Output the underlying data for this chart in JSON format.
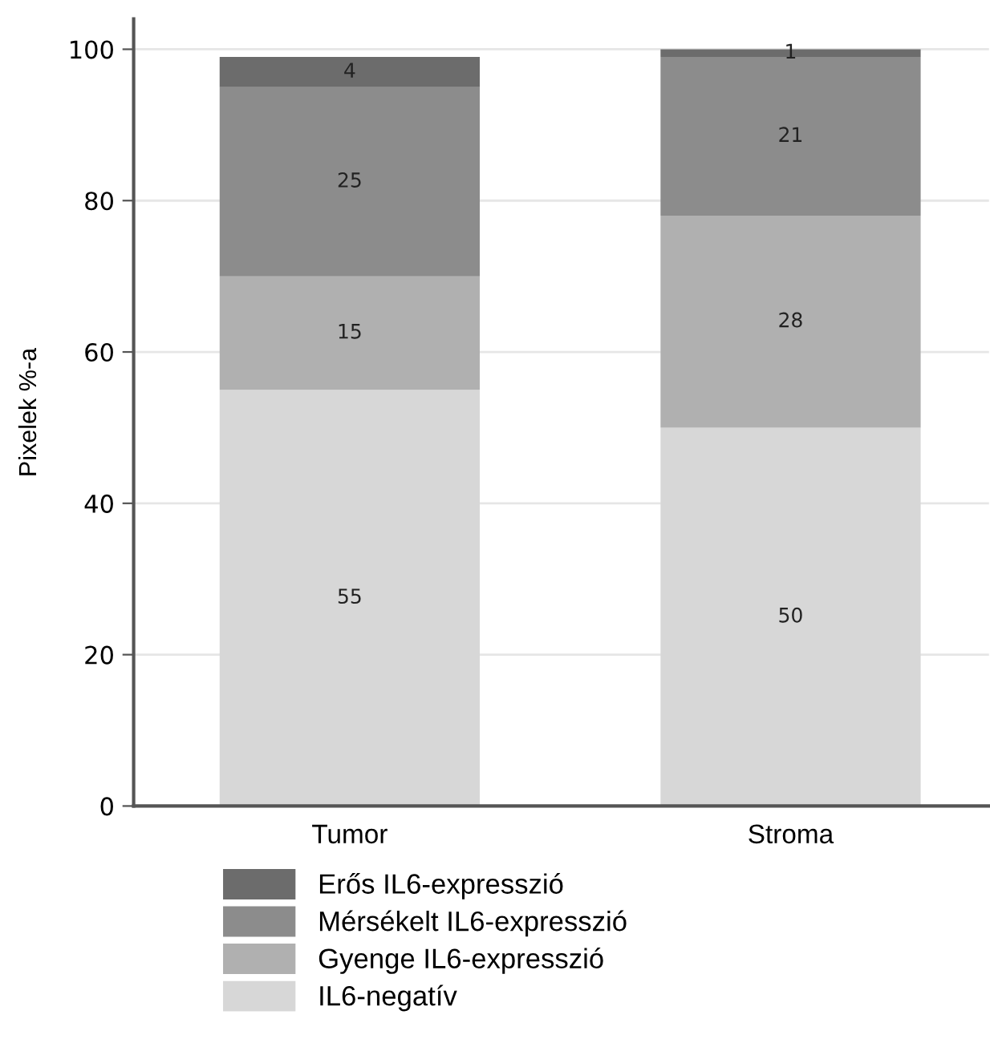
{
  "chart_data": {
    "type": "bar",
    "stacked": true,
    "ylabel": "Pixelek %-a",
    "categories": [
      "Tumor",
      "Stroma"
    ],
    "series": [
      {
        "name": "IL6-negatív",
        "color": "#d7d7d7",
        "values": [
          55,
          50
        ]
      },
      {
        "name": "Gyenge IL6-expresszió",
        "color": "#b0b0b0",
        "values": [
          15,
          28
        ]
      },
      {
        "name": "Mérsékelt IL6-expresszió",
        "color": "#8c8c8c",
        "values": [
          25,
          21
        ]
      },
      {
        "name": "Erős IL6-expresszió",
        "color": "#6c6c6c",
        "values": [
          4,
          1
        ]
      }
    ],
    "ylim": [
      0,
      104
    ],
    "yticks": [
      0,
      20,
      40,
      60,
      80,
      100
    ],
    "grid": "y",
    "legend": "bottom",
    "data_labels": true
  }
}
